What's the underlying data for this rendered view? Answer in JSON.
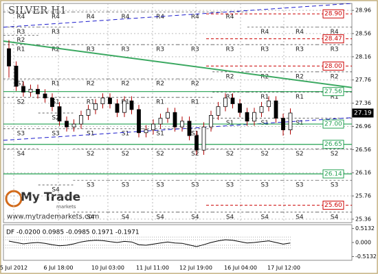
{
  "chart_data": {
    "type": "candlestick",
    "title": "SILVER H1",
    "ylim": [
      25.3,
      29.08
    ],
    "yticks": [
      28.96,
      28.56,
      28.16,
      27.76,
      27.36,
      26.96,
      26.56,
      26.16,
      25.76,
      25.36
    ],
    "categories": [
      "5 Jul 2012",
      "6 Jul 18:00",
      "10 Jul 03:00",
      "11 Jul 11:00",
      "12 Jul 19:00",
      "16 Jul 04:00",
      "17 Jul 12:00"
    ],
    "candles": {
      "open": [
        28.3,
        28.0,
        27.65,
        27.55,
        27.6,
        27.52,
        27.45,
        27.3,
        27.05,
        26.95,
        27.0,
        27.15,
        27.25,
        27.35,
        27.45,
        27.35,
        27.2,
        27.4,
        27.25,
        26.85,
        26.9,
        27.0,
        27.1,
        27.2,
        26.95,
        27.05,
        26.8,
        26.55,
        26.95,
        27.15,
        27.3,
        27.45,
        27.35,
        27.2,
        27.05,
        27.2,
        27.3,
        27.4,
        27.1,
        26.9
      ],
      "high": [
        28.45,
        28.08,
        27.73,
        27.68,
        27.68,
        27.6,
        27.53,
        27.38,
        27.13,
        27.08,
        27.23,
        27.33,
        27.43,
        27.53,
        27.53,
        27.43,
        27.48,
        27.48,
        27.33,
        26.98,
        27.08,
        27.18,
        27.28,
        27.28,
        27.13,
        27.13,
        26.88,
        27.03,
        27.23,
        27.38,
        27.53,
        27.53,
        27.43,
        27.28,
        27.28,
        27.38,
        27.48,
        27.48,
        27.18,
        27.27
      ],
      "low": [
        27.8,
        27.57,
        27.47,
        27.47,
        27.44,
        27.37,
        27.22,
        26.97,
        26.87,
        26.87,
        26.92,
        27.07,
        27.17,
        27.27,
        27.27,
        27.12,
        27.12,
        27.17,
        26.77,
        26.77,
        26.82,
        26.92,
        27.02,
        26.87,
        26.87,
        26.72,
        26.47,
        26.47,
        26.87,
        27.07,
        27.22,
        27.27,
        27.12,
        26.97,
        26.97,
        27.12,
        27.22,
        27.02,
        26.8,
        26.82
      ],
      "close": [
        28.0,
        27.65,
        27.55,
        27.6,
        27.52,
        27.45,
        27.3,
        27.05,
        26.95,
        27.0,
        27.15,
        27.25,
        27.35,
        27.45,
        27.35,
        27.2,
        27.4,
        27.25,
        26.85,
        26.9,
        27.0,
        27.1,
        27.2,
        26.95,
        27.05,
        26.8,
        26.55,
        26.95,
        27.15,
        27.3,
        27.45,
        27.35,
        27.2,
        27.05,
        27.2,
        27.3,
        27.4,
        27.1,
        26.9,
        27.19
      ]
    },
    "pivot_names": [
      "R4",
      "R3",
      "R2",
      "R1",
      "S1",
      "S2",
      "S3",
      "S4"
    ],
    "pivot_periods": [
      [
        28.93,
        28.67,
        28.53,
        28.37,
        27.78,
        27.46,
        26.92,
        26.57
      ],
      [
        28.93,
        28.67,
        28.37,
        27.78,
        27.46,
        27.19,
        26.92,
        25.95
      ],
      [
        28.93,
        28.37,
        27.78,
        27.46,
        26.92,
        26.57,
        26.03,
        25.48
      ],
      [
        28.93,
        28.37,
        27.78,
        27.46,
        26.92,
        26.57,
        26.03,
        25.48
      ],
      [
        28.93,
        28.37,
        27.78,
        27.46,
        26.92,
        26.57,
        26.03,
        25.48
      ],
      [
        28.93,
        28.37,
        27.78,
        27.46,
        26.92,
        26.57,
        26.03,
        25.48
      ],
      [
        28.93,
        28.37,
        27.9,
        27.55,
        27.1,
        26.57,
        26.03,
        25.48
      ],
      [
        28.67,
        28.37,
        27.9,
        27.55,
        27.1,
        26.57,
        26.03,
        25.48
      ],
      [
        28.67,
        28.37,
        27.9,
        27.55,
        27.1,
        26.57,
        26.03,
        25.48
      ],
      [
        28.67,
        28.37,
        27.9,
        27.55,
        27.1,
        26.57,
        26.03,
        25.48
      ]
    ],
    "levels": {
      "values": [
        28.9,
        28.47,
        28.0,
        27.56,
        27.19,
        27.0,
        26.65,
        26.14,
        25.6
      ],
      "value_labels": [
        "28.90",
        "28.47",
        "28.00",
        "27.56",
        "27.19",
        "27.00",
        "26.65",
        "26.14",
        "25.60"
      ],
      "colors": [
        "#cc0000",
        "#cc0000",
        "#cc0000",
        "#22a050",
        "#000000",
        "#22a050",
        "#22a050",
        "#22a050",
        "#cc0000"
      ],
      "styles": [
        "dashed",
        "dashed",
        "dashed",
        "solid",
        "current",
        "solid",
        "solid",
        "solid",
        "dashed"
      ]
    },
    "trendlines": [
      {
        "color": "#3aa860",
        "style": "solid",
        "values": [
          28.43,
          27.63
        ]
      },
      {
        "color": "#1a1acc",
        "style": "dashed",
        "values": [
          28.67,
          29.08
        ]
      },
      {
        "color": "#1a1acc",
        "style": "dashed",
        "values": [
          26.72,
          27.11
        ]
      }
    ],
    "indicator": {
      "label": "DF -0.0200 0.0985 -0.0985 0.1971 -0.1971",
      "ylim": [
        -0.6,
        0.6
      ],
      "yticks": [
        {
          "value": 0.51,
          "label": "0.5132"
        },
        {
          "value": 0,
          "label": "0.000"
        },
        {
          "value": -0.5132,
          "label": "-0.5132"
        }
      ],
      "bands": [
        0.0985,
        -0.0985,
        0.1971,
        -0.1971
      ],
      "values": [
        0.05,
        0.0,
        -0.05,
        -0.02,
        0.0,
        -0.03,
        -0.08,
        -0.12,
        -0.1,
        -0.05,
        0.02,
        0.06,
        0.08,
        0.07,
        0.03,
        0.0,
        0.04,
        0.02,
        -0.08,
        -0.1,
        -0.06,
        -0.02,
        0.02,
        -0.02,
        -0.03,
        -0.09,
        -0.15,
        -0.08,
        0.0,
        0.06,
        0.1,
        0.08,
        0.03,
        -0.02,
        0.0,
        0.03,
        0.06,
        0.0,
        -0.06,
        -0.02
      ]
    }
  },
  "watermark": {
    "name": "My Trade",
    "tagline": "markets",
    "url": "www.mytrademarkets.com"
  }
}
